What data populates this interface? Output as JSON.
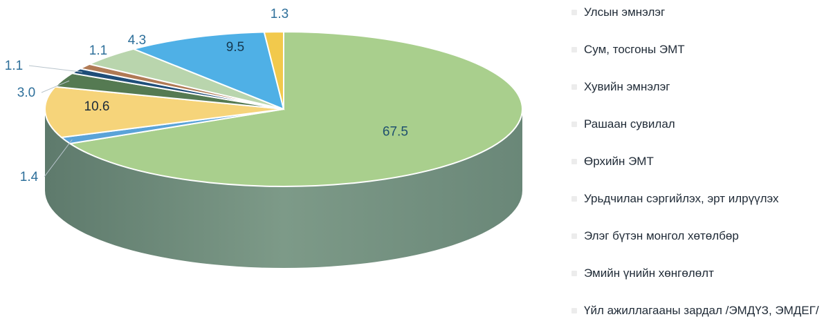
{
  "chart_data": {
    "type": "pie",
    "title": "",
    "categories": [
      "Улсын эмнэлэг",
      "Сум, тосгоны ЭМТ",
      "Хувийн эмнэлэг",
      "Рашаан сувилал",
      "Өрхийн ЭМТ",
      "Урьдчилан сэргийлэх, эрт илрүүлэх",
      "Элэг бүтэн монгол хөтөлбөр",
      "Эмийн үнийн хөнгөлөлт",
      "Үйл ажиллагааны зардал /ЭМДҮЗ, ЭМДЕГ/"
    ],
    "values": [
      67.5,
      1.4,
      10.6,
      3.0,
      1.1,
      1.1,
      4.3,
      9.5,
      1.3
    ],
    "value_labels": [
      "67.5",
      "1.4",
      "10.6",
      "3.0",
      "1.1",
      "1.1",
      "4.3",
      "9.5",
      "1.3"
    ],
    "colors": [
      "#a9cf8d",
      "#5aa3d8",
      "#f6d47a",
      "#557a52",
      "#1f4e79",
      "#b07a55",
      "#b9d5ad",
      "#4fb0e6",
      "#f2c94c"
    ],
    "legend_position": "right",
    "start": "12 o'clock, clockwise"
  }
}
